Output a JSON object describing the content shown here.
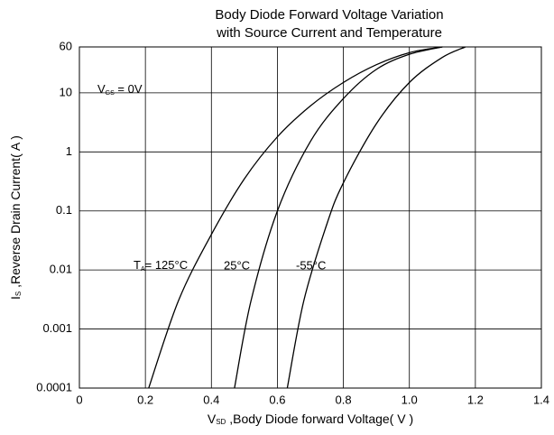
{
  "chart_data": {
    "type": "line",
    "title": [
      "Body Diode Forward Voltage Variation",
      "with Source Current and Temperature"
    ],
    "xlabel": {
      "main": "V",
      "sub": "SD",
      "rest": " ,Body Diode forward Voltage( V )"
    },
    "ylabel": {
      "main": "I",
      "sub": "S",
      "rest": " ,Reverse Drain Current( A )"
    },
    "xlim": [
      0,
      1.4
    ],
    "xticks": [
      0,
      0.2,
      0.4,
      0.6,
      0.8,
      {
        "value": 1.0,
        "label": "1.0"
      },
      1.2,
      1.4
    ],
    "ylim": [
      0.0001,
      60
    ],
    "yticks": [
      0.0001,
      0.001,
      0.01,
      0.1,
      1,
      10,
      60
    ],
    "log_y": true,
    "grid": true,
    "annotations": [
      {
        "main": "V",
        "sub": "GS",
        "rest": " = 0V"
      },
      {
        "main": "T",
        "sub": "A",
        "rest": "= 125°C"
      },
      {
        "main": "25°C"
      },
      {
        "main": "-55°C"
      }
    ],
    "series": [
      {
        "name": "125°C",
        "color": "#000000",
        "x": [
          0.21,
          0.3,
          0.4,
          0.5,
          0.6,
          0.7,
          0.8,
          0.9,
          1.0,
          1.1
        ],
        "values": [
          0.0001,
          0.003,
          0.04,
          0.35,
          1.8,
          6,
          15,
          30,
          48,
          60
        ]
      },
      {
        "name": "25°C",
        "color": "#000000",
        "x": [
          0.47,
          0.52,
          0.6,
          0.7,
          0.8,
          0.9,
          1.0,
          1.1
        ],
        "values": [
          0.0001,
          0.003,
          0.1,
          1.5,
          8,
          25,
          45,
          60
        ]
      },
      {
        "name": "-55°C",
        "color": "#000000",
        "x": [
          0.63,
          0.68,
          0.75,
          0.8,
          0.9,
          1.0,
          1.1,
          1.17
        ],
        "values": [
          0.0001,
          0.003,
          0.06,
          0.3,
          3,
          15,
          40,
          60
        ]
      }
    ]
  }
}
